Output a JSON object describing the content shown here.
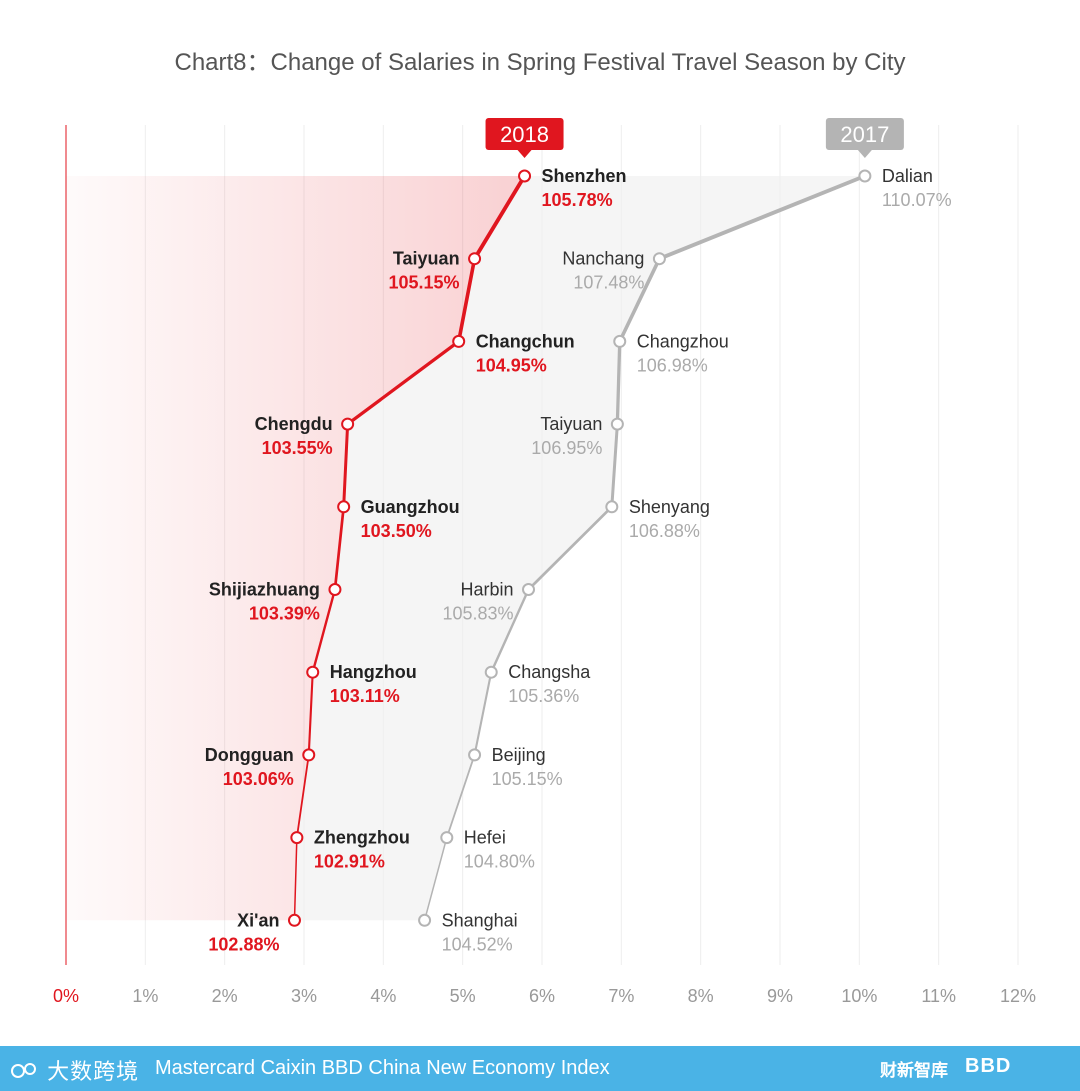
{
  "chart_data": {
    "type": "line",
    "title": "Chart8：Change of Salaries in Spring Festival Travel Season by City",
    "x_ticks": [
      "0%",
      "1%",
      "2%",
      "3%",
      "4%",
      "5%",
      "6%",
      "7%",
      "8%",
      "9%",
      "10%",
      "11%",
      "12%"
    ],
    "xlim": [
      0,
      12
    ],
    "xlabel": "",
    "ylabel": "",
    "series": [
      {
        "name": "2018",
        "color": "#e0161f",
        "points": [
          {
            "city": "Shenzhen",
            "label": "105.78%",
            "x": 5.78
          },
          {
            "city": "Taiyuan",
            "label": "105.15%",
            "x": 5.15
          },
          {
            "city": "Changchun",
            "label": "104.95%",
            "x": 4.95
          },
          {
            "city": "Chengdu",
            "label": "103.55%",
            "x": 3.55
          },
          {
            "city": "Guangzhou",
            "label": "103.50%",
            "x": 3.5
          },
          {
            "city": "Shijiazhuang",
            "label": "103.39%",
            "x": 3.39
          },
          {
            "city": "Hangzhou",
            "label": "103.11%",
            "x": 3.11
          },
          {
            "city": "Dongguan",
            "label": "103.06%",
            "x": 3.06
          },
          {
            "city": "Zhengzhou",
            "label": "102.91%",
            "x": 2.91
          },
          {
            "city": "Xi'an",
            "label": "102.88%",
            "x": 2.88
          }
        ]
      },
      {
        "name": "2017",
        "color": "#b4b4b4",
        "points": [
          {
            "city": "Dalian",
            "label": "110.07%",
            "x": 10.07
          },
          {
            "city": "Nanchang",
            "label": "107.48%",
            "x": 7.48
          },
          {
            "city": "Changzhou",
            "label": "106.98%",
            "x": 6.98
          },
          {
            "city": "Taiyuan",
            "label": "106.95%",
            "x": 6.95
          },
          {
            "city": "Shenyang",
            "label": "106.88%",
            "x": 6.88
          },
          {
            "city": "Harbin",
            "label": "105.83%",
            "x": 5.83
          },
          {
            "city": "Changsha",
            "label": "105.36%",
            "x": 5.36
          },
          {
            "city": "Beijing",
            "label": "105.15%",
            "x": 5.15
          },
          {
            "city": "Hefei",
            "label": "104.80%",
            "x": 4.8
          },
          {
            "city": "Shanghai",
            "label": "104.52%",
            "x": 4.52
          }
        ]
      }
    ]
  },
  "footer": {
    "brand": "大数跨境",
    "title": "Mastercard Caixin BBD China New Economy Index",
    "logo_text": "财新智库",
    "bbd_text": "BBD"
  },
  "colors": {
    "red": "#e0161f",
    "gray": "#b4b4b4",
    "footer_bg": "#4ab3e6"
  }
}
